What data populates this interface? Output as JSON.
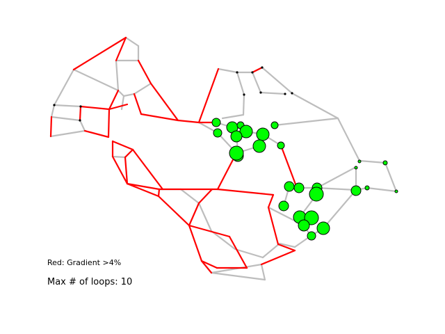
{
  "legend": {
    "red_label": "Red: Gradient >4%",
    "loops_label": "Max # of loops: 10"
  },
  "colors": {
    "gradient_edge": "#ff0000",
    "normal_edge": "#bdbdbd",
    "node_fill": "#00ff00",
    "node_stroke": "#000000",
    "background": "#ffffff"
  }
}
